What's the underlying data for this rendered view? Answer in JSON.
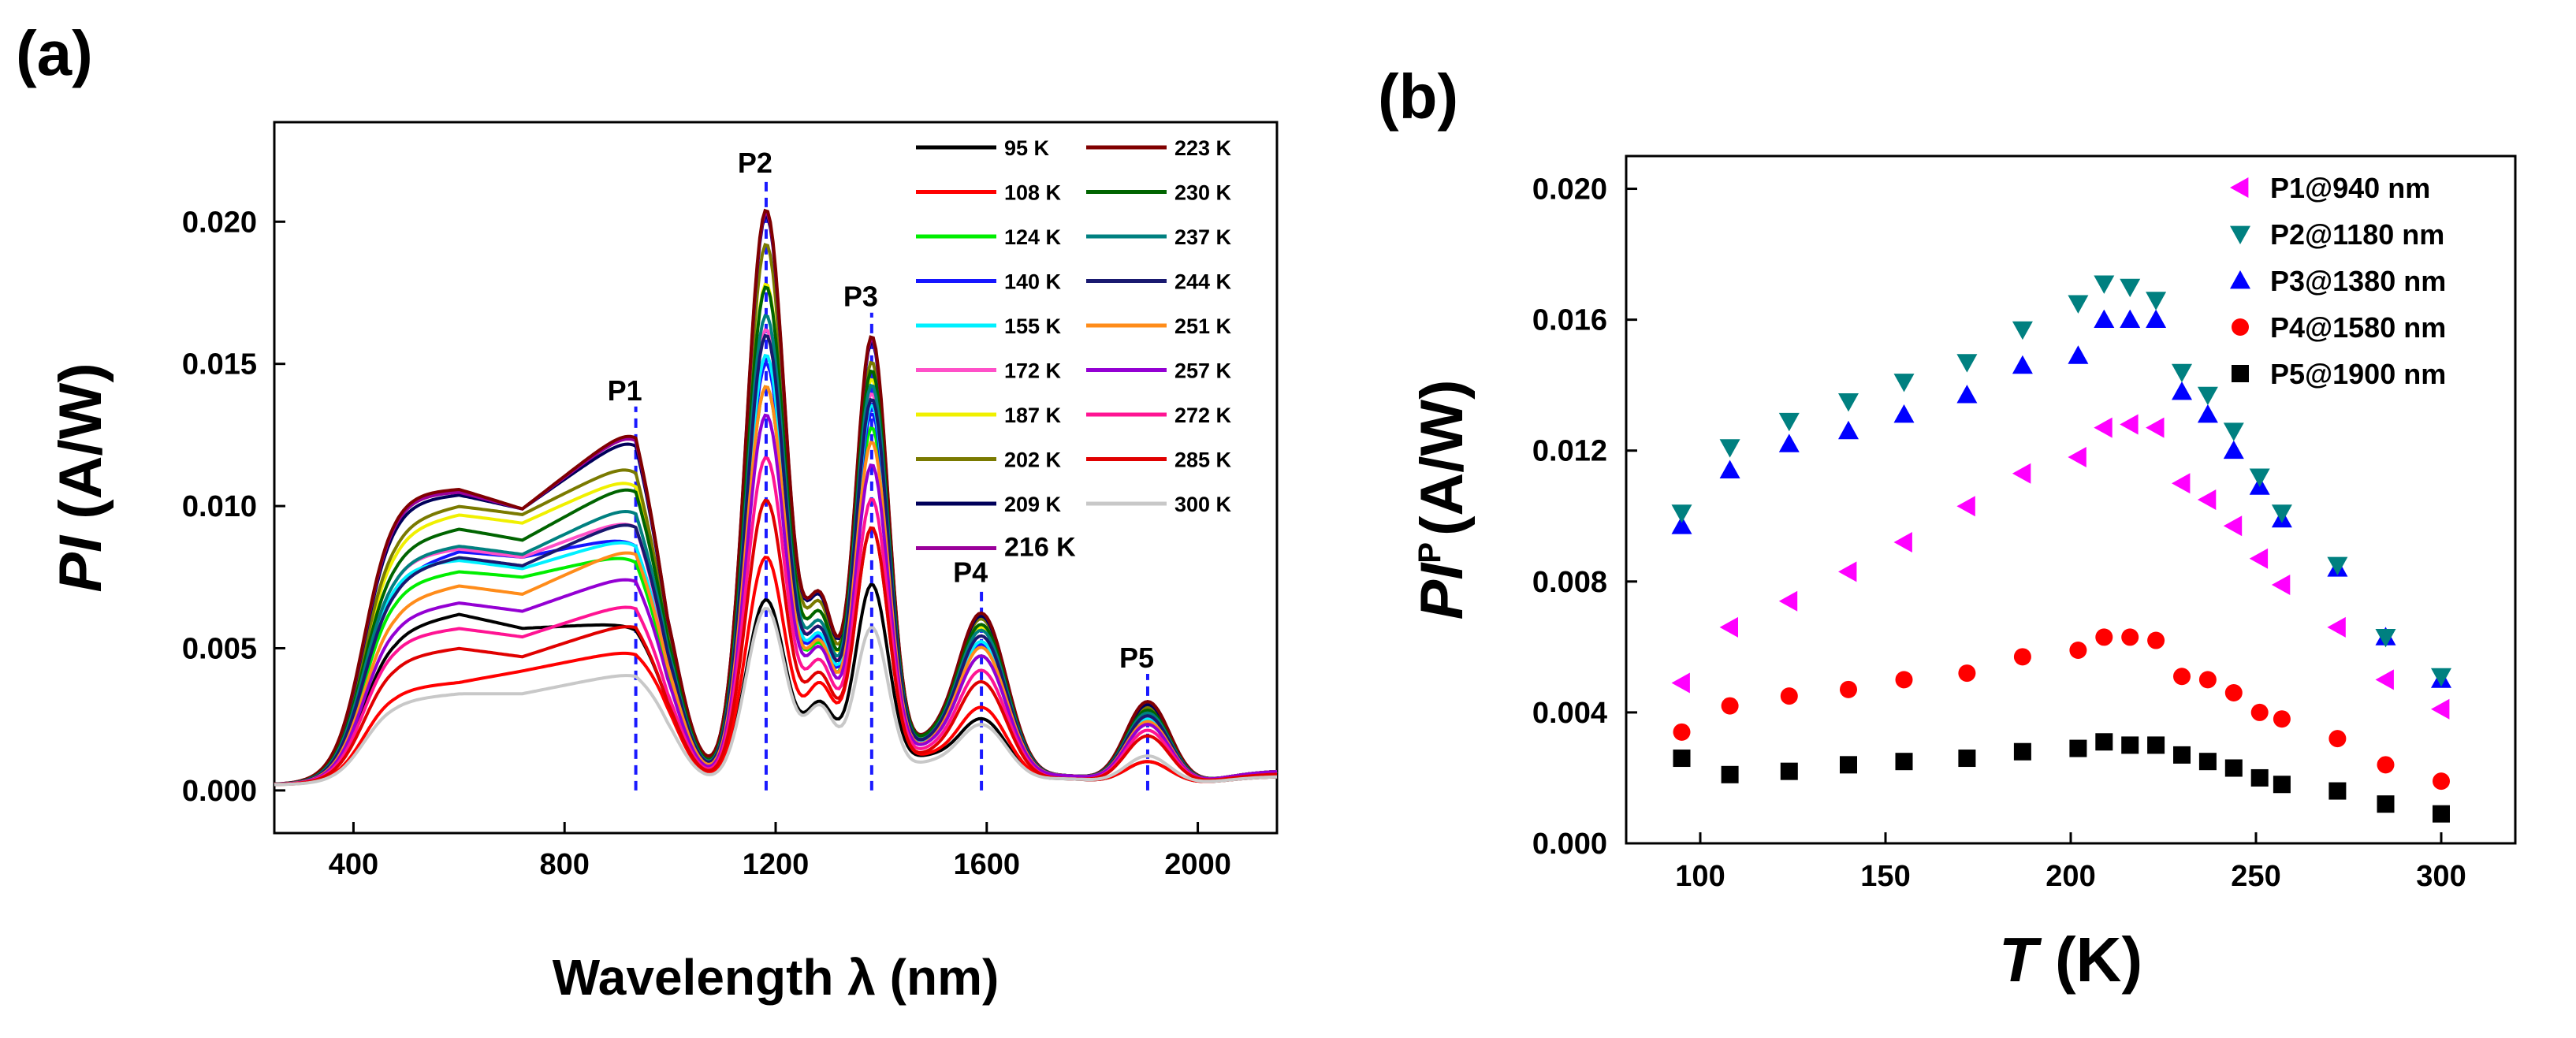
{
  "panels": {
    "a": {
      "label": "(a)"
    },
    "b": {
      "label": "(b)"
    }
  },
  "chart_data": [
    {
      "type": "line",
      "panel": "(a)",
      "xlabel": "Wavelength λ (nm)",
      "ylabel_main": "PI",
      "ylabel_unit": " (A/W)",
      "xlim": [
        250,
        2150
      ],
      "ylim": [
        -0.0015,
        0.0235
      ],
      "xticks": [
        400,
        800,
        1200,
        1600,
        2000
      ],
      "xtick_labels": [
        "400",
        "800",
        "1200",
        "1600",
        "2000"
      ],
      "yticks": [
        0.0,
        0.005,
        0.01,
        0.015,
        0.02
      ],
      "ytick_labels": [
        "0.000",
        "0.005",
        "0.010",
        "0.015",
        "0.020"
      ],
      "peak_lines": [
        {
          "label": "P1",
          "x": 935,
          "ymax": 0.0135
        },
        {
          "label": "P2",
          "x": 1182,
          "ymax": 0.0215
        },
        {
          "label": "P3",
          "x": 1382,
          "ymax": 0.0168
        },
        {
          "label": "P4",
          "x": 1590,
          "ymax": 0.0071
        },
        {
          "label": "P5",
          "x": 1905,
          "ymax": 0.0041
        }
      ],
      "series": [
        {
          "name": "95 K",
          "color": "#000000",
          "values": [
            0.0055,
            0.006,
            0.0055,
            0.0057,
            0.0045,
            0.0015,
            0.0065,
            0.0027,
            0.007,
            0.0008,
            0.0023,
            0.0002,
            0.0008,
            0.0003
          ]
        },
        {
          "name": "108 K",
          "color": "#ff0000",
          "values": [
            0.0034,
            0.0036,
            0.004,
            0.0048,
            0.0042,
            0.0013,
            0.008,
            0.0033,
            0.009,
            0.0008,
            0.0027,
            0.0002,
            0.0008,
            0.0003
          ]
        },
        {
          "name": "124 K",
          "color": "#00ee00",
          "values": [
            0.0071,
            0.0075,
            0.0073,
            0.0082,
            0.0061,
            0.0018,
            0.014,
            0.0045,
            0.0125,
            0.001,
            0.0045,
            0.0003,
            0.0021,
            0.0005
          ]
        },
        {
          "name": "140 K",
          "color": "#1515ff",
          "values": [
            0.0075,
            0.0082,
            0.008,
            0.0088,
            0.0066,
            0.0019,
            0.0148,
            0.0047,
            0.013,
            0.0011,
            0.0049,
            0.0003,
            0.0023,
            0.0005
          ]
        },
        {
          "name": "155 K",
          "color": "#00f0ff",
          "values": [
            0.0077,
            0.0079,
            0.0076,
            0.0088,
            0.0066,
            0.0019,
            0.0151,
            0.0048,
            0.0133,
            0.0011,
            0.005,
            0.0003,
            0.0023,
            0.0005
          ]
        },
        {
          "name": "172 K",
          "color": "#ff50c8",
          "values": [
            0.008,
            0.0083,
            0.008,
            0.0095,
            0.007,
            0.002,
            0.016,
            0.005,
            0.0137,
            0.0011,
            0.0052,
            0.0003,
            0.0024,
            0.0005
          ]
        },
        {
          "name": "187 K",
          "color": "#f0f000",
          "values": [
            0.009,
            0.0095,
            0.0092,
            0.011,
            0.008,
            0.0022,
            0.0176,
            0.0055,
            0.0142,
            0.0012,
            0.0055,
            0.0003,
            0.0026,
            0.0005
          ]
        },
        {
          "name": "202 K",
          "color": "#7a7a00",
          "values": [
            0.0093,
            0.0098,
            0.0095,
            0.0115,
            0.0083,
            0.0023,
            0.019,
            0.0058,
            0.0148,
            0.0012,
            0.0058,
            0.0003,
            0.0027,
            0.0005
          ]
        },
        {
          "name": "209 K",
          "color": "#00005a",
          "values": [
            0.01,
            0.0102,
            0.0097,
            0.0125,
            0.009,
            0.0024,
            0.02,
            0.006,
            0.0155,
            0.0012,
            0.0059,
            0.0003,
            0.0028,
            0.0005
          ]
        },
        {
          "name": "216 K",
          "color": "#9a009a",
          "values": [
            0.0102,
            0.0103,
            0.0097,
            0.0127,
            0.0091,
            0.0024,
            0.0201,
            0.0061,
            0.0156,
            0.0012,
            0.006,
            0.0003,
            0.0029,
            0.0005
          ]
        },
        {
          "name": "223 K",
          "color": "#800000",
          "values": [
            0.0103,
            0.0104,
            0.0097,
            0.0128,
            0.0091,
            0.0024,
            0.0202,
            0.0061,
            0.0157,
            0.0012,
            0.006,
            0.0003,
            0.0029,
            0.0005
          ]
        },
        {
          "name": "230 K",
          "color": "#006400",
          "values": [
            0.0085,
            0.009,
            0.0086,
            0.0108,
            0.008,
            0.0022,
            0.0175,
            0.0055,
            0.0145,
            0.0012,
            0.0056,
            0.0003,
            0.0026,
            0.0005
          ]
        },
        {
          "name": "237 K",
          "color": "#008080",
          "values": [
            0.008,
            0.0084,
            0.0081,
            0.01,
            0.0075,
            0.0021,
            0.0165,
            0.0052,
            0.014,
            0.0011,
            0.0054,
            0.0003,
            0.0025,
            0.0005
          ]
        },
        {
          "name": "244 K",
          "color": "#191970",
          "values": [
            0.0075,
            0.008,
            0.0077,
            0.0095,
            0.0072,
            0.002,
            0.0158,
            0.005,
            0.0135,
            0.0011,
            0.0052,
            0.0003,
            0.0024,
            0.0005
          ]
        },
        {
          "name": "251 K",
          "color": "#ff8c1a",
          "values": [
            0.0065,
            0.007,
            0.0067,
            0.0085,
            0.0065,
            0.0018,
            0.014,
            0.0046,
            0.012,
            0.001,
            0.0048,
            0.0003,
            0.0022,
            0.0005
          ]
        },
        {
          "name": "257 K",
          "color": "#9400d3",
          "values": [
            0.006,
            0.0064,
            0.0061,
            0.0075,
            0.0058,
            0.0016,
            0.013,
            0.0044,
            0.0112,
            0.001,
            0.0045,
            0.0003,
            0.0021,
            0.0005
          ]
        },
        {
          "name": "272 K",
          "color": "#ff1493",
          "values": [
            0.0052,
            0.0055,
            0.0052,
            0.0065,
            0.005,
            0.0014,
            0.0115,
            0.004,
            0.01,
            0.0009,
            0.004,
            0.0002,
            0.0019,
            0.0004
          ]
        },
        {
          "name": "285 K",
          "color": "#e00000",
          "values": [
            0.0045,
            0.0048,
            0.0045,
            0.0058,
            0.0045,
            0.0013,
            0.01,
            0.0036,
            0.009,
            0.0008,
            0.0036,
            0.0002,
            0.0017,
            0.0004
          ]
        },
        {
          "name": "300 K",
          "color": "#c8c8c8",
          "values": [
            0.003,
            0.0032,
            0.0032,
            0.004,
            0.0034,
            0.001,
            0.0062,
            0.0026,
            0.0055,
            0.0006,
            0.0021,
            0.0002,
            0.001,
            0.0003
          ]
        }
      ]
    },
    {
      "type": "scatter",
      "panel": "(b)",
      "xlabel_main": "T",
      "xlabel_unit": " (K)",
      "ylabel_main": "PI",
      "ylabel_sup": "P",
      "ylabel_unit": "(A/W)",
      "xlim": [
        80,
        320
      ],
      "ylim": [
        0.0,
        0.021
      ],
      "xticks": [
        100,
        150,
        200,
        250,
        300
      ],
      "xtick_labels": [
        "100",
        "150",
        "200",
        "250",
        "300"
      ],
      "yticks": [
        0.0,
        0.004,
        0.008,
        0.012,
        0.016,
        0.02
      ],
      "ytick_labels": [
        "0.000",
        "0.004",
        "0.008",
        "0.012",
        "0.016",
        "0.020"
      ],
      "x": [
        95,
        108,
        124,
        140,
        155,
        172,
        187,
        202,
        209,
        216,
        223,
        230,
        237,
        244,
        251,
        257,
        272,
        285,
        300
      ],
      "series": [
        {
          "name": "P1@940 nm",
          "color": "#ff00ff",
          "marker": "triangle-left",
          "values": [
            0.0049,
            0.0066,
            0.0074,
            0.0083,
            0.0092,
            0.0103,
            0.0113,
            0.0118,
            0.0127,
            0.0128,
            0.0127,
            0.011,
            0.0105,
            0.0097,
            0.0087,
            0.0079,
            0.0066,
            0.005,
            0.0041
          ]
        },
        {
          "name": "P2@1180 nm",
          "color": "#008080",
          "marker": "triangle-down",
          "values": [
            0.0101,
            0.0121,
            0.0129,
            0.0135,
            0.0141,
            0.0147,
            0.0157,
            0.0165,
            0.0171,
            0.017,
            0.0166,
            0.0144,
            0.0137,
            0.0126,
            0.0112,
            0.0101,
            0.0085,
            0.0063,
            0.0051
          ]
        },
        {
          "name": "P3@1380 nm",
          "color": "#0000ff",
          "marker": "triangle-up",
          "values": [
            0.0097,
            0.0114,
            0.0122,
            0.0126,
            0.0131,
            0.0137,
            0.0146,
            0.0149,
            0.016,
            0.016,
            0.016,
            0.0138,
            0.0131,
            0.012,
            0.0109,
            0.0099,
            0.0084,
            0.0063,
            0.005
          ]
        },
        {
          "name": "P4@1580 nm",
          "color": "#ff0000",
          "marker": "circle",
          "values": [
            0.0034,
            0.0042,
            0.0045,
            0.0047,
            0.005,
            0.0052,
            0.0057,
            0.0059,
            0.0063,
            0.0063,
            0.0062,
            0.0051,
            0.005,
            0.0046,
            0.004,
            0.0038,
            0.0032,
            0.0024,
            0.0019
          ]
        },
        {
          "name": "P5@1900 nm",
          "color": "#000000",
          "marker": "square",
          "values": [
            0.0026,
            0.0021,
            0.0022,
            0.0024,
            0.0025,
            0.0026,
            0.0028,
            0.0029,
            0.0031,
            0.003,
            0.003,
            0.0027,
            0.0025,
            0.0023,
            0.002,
            0.0018,
            0.0016,
            0.0012,
            0.0009
          ]
        }
      ]
    }
  ]
}
